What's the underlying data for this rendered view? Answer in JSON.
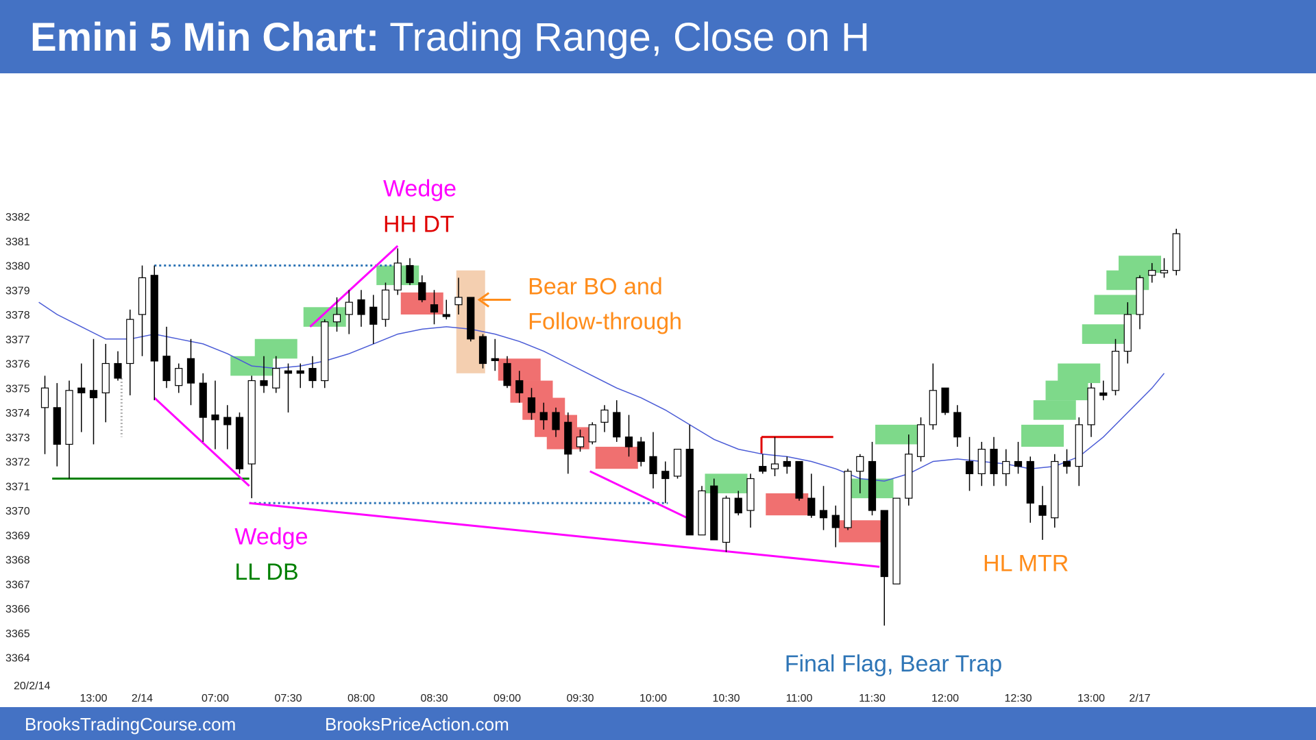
{
  "header": {
    "title_bold": "Emini 5 Min Chart:",
    "title_rest": " Trading Range, Close on H"
  },
  "footer": {
    "left_link": "BrooksTradingCourse.com",
    "right_link": "BrooksPriceAction.com"
  },
  "colors": {
    "banner": "#4472c4",
    "ema": "#4a5bd6",
    "bull_bar_bg": "#7ed98a",
    "bear_bar_bg": "#f07070",
    "wedge_line": "#ff00ff",
    "double_bottom_line": "#008000",
    "resistance_line": "#e00000",
    "dotted_range": "#2e75b6",
    "arrow": "#ff8c1a",
    "highlight": "#f4cfb0"
  },
  "chart_data": {
    "type": "candlestick",
    "date_label": "20/2/14",
    "y_ticks": [
      3382,
      3381,
      3380,
      3379,
      3378,
      3377,
      3376,
      3375,
      3374,
      3373,
      3372,
      3371,
      3370,
      3369,
      3368,
      3367,
      3366,
      3365,
      3364
    ],
    "ylim": [
      3364,
      3382
    ],
    "x_tick_labels": [
      {
        "label": "13:00",
        "bar": 4
      },
      {
        "label": "2/14",
        "bar": 8
      },
      {
        "label": "07:00",
        "bar": 14
      },
      {
        "label": "07:30",
        "bar": 20
      },
      {
        "label": "08:00",
        "bar": 26
      },
      {
        "label": "08:30",
        "bar": 32
      },
      {
        "label": "09:00",
        "bar": 38
      },
      {
        "label": "09:30",
        "bar": 44
      },
      {
        "label": "10:00",
        "bar": 50
      },
      {
        "label": "10:30",
        "bar": 56
      },
      {
        "label": "11:00",
        "bar": 62
      },
      {
        "label": "11:30",
        "bar": 68
      },
      {
        "label": "12:00",
        "bar": 74
      },
      {
        "label": "12:30",
        "bar": 80
      },
      {
        "label": "13:00",
        "bar": 86
      },
      {
        "label": "2/17",
        "bar": 90
      }
    ],
    "bars": [
      {
        "o": 3374.2,
        "h": 3375.5,
        "l": 3372.3,
        "c": 3375.0
      },
      {
        "o": 3374.2,
        "h": 3375.2,
        "l": 3371.8,
        "c": 3372.7
      },
      {
        "o": 3372.7,
        "h": 3375.3,
        "l": 3371.3,
        "c": 3374.9
      },
      {
        "o": 3375.0,
        "h": 3376.0,
        "l": 3373.2,
        "c": 3374.8
      },
      {
        "o": 3374.9,
        "h": 3377.0,
        "l": 3372.7,
        "c": 3374.6
      },
      {
        "o": 3374.8,
        "h": 3376.8,
        "l": 3373.6,
        "c": 3376.0
      },
      {
        "o": 3376.0,
        "h": 3376.5,
        "l": 3375.3,
        "c": 3375.4
      },
      {
        "o": 3376.0,
        "h": 3378.2,
        "l": 3374.7,
        "c": 3377.8
      },
      {
        "o": 3378.0,
        "h": 3380.0,
        "l": 3376.3,
        "c": 3379.5
      },
      {
        "o": 3379.6,
        "h": 3380.0,
        "l": 3374.5,
        "c": 3376.1
      },
      {
        "o": 3376.3,
        "h": 3377.5,
        "l": 3375.0,
        "c": 3375.3
      },
      {
        "o": 3375.1,
        "h": 3376.0,
        "l": 3374.8,
        "c": 3375.8
      },
      {
        "o": 3376.2,
        "h": 3377.0,
        "l": 3374.3,
        "c": 3375.2
      },
      {
        "o": 3375.2,
        "h": 3375.6,
        "l": 3372.8,
        "c": 3373.8
      },
      {
        "o": 3373.9,
        "h": 3375.3,
        "l": 3372.5,
        "c": 3373.7
      },
      {
        "o": 3373.8,
        "h": 3374.3,
        "l": 3372.5,
        "c": 3373.5
      },
      {
        "o": 3373.8,
        "h": 3374.0,
        "l": 3371.5,
        "c": 3371.7
      },
      {
        "o": 3371.9,
        "h": 3375.5,
        "l": 3370.5,
        "c": 3375.3
      },
      {
        "o": 3375.3,
        "h": 3376.3,
        "l": 3374.8,
        "c": 3375.1
      },
      {
        "o": 3375.0,
        "h": 3376.3,
        "l": 3374.8,
        "c": 3375.8
      },
      {
        "o": 3375.7,
        "h": 3376.0,
        "l": 3374.0,
        "c": 3375.6
      },
      {
        "o": 3375.7,
        "h": 3376.0,
        "l": 3375.0,
        "c": 3375.6
      },
      {
        "o": 3375.8,
        "h": 3376.3,
        "l": 3375.0,
        "c": 3375.3
      },
      {
        "o": 3375.3,
        "h": 3377.8,
        "l": 3375.0,
        "c": 3377.7
      },
      {
        "o": 3377.7,
        "h": 3378.7,
        "l": 3377.3,
        "c": 3378.0
      },
      {
        "o": 3378.0,
        "h": 3379.0,
        "l": 3377.2,
        "c": 3378.5
      },
      {
        "o": 3378.6,
        "h": 3379.0,
        "l": 3377.5,
        "c": 3378.0
      },
      {
        "o": 3378.3,
        "h": 3378.8,
        "l": 3376.8,
        "c": 3377.6
      },
      {
        "o": 3377.8,
        "h": 3379.3,
        "l": 3377.5,
        "c": 3379.0
      },
      {
        "o": 3379.0,
        "h": 3380.7,
        "l": 3378.8,
        "c": 3380.1
      },
      {
        "o": 3380.0,
        "h": 3380.3,
        "l": 3379.2,
        "c": 3379.3
      },
      {
        "o": 3379.3,
        "h": 3379.6,
        "l": 3378.5,
        "c": 3378.6
      },
      {
        "o": 3378.4,
        "h": 3379.0,
        "l": 3377.6,
        "c": 3378.1
      },
      {
        "o": 3378.0,
        "h": 3378.6,
        "l": 3377.8,
        "c": 3378.0
      },
      {
        "o": 3378.4,
        "h": 3379.5,
        "l": 3378.0,
        "c": 3378.7
      },
      {
        "o": 3378.7,
        "h": 3378.7,
        "l": 3376.9,
        "c": 3377.0
      },
      {
        "o": 3377.1,
        "h": 3377.2,
        "l": 3375.8,
        "c": 3376.0
      },
      {
        "o": 3376.2,
        "h": 3377.0,
        "l": 3375.7,
        "c": 3376.2
      },
      {
        "o": 3376.0,
        "h": 3376.3,
        "l": 3375.0,
        "c": 3375.1
      },
      {
        "o": 3375.3,
        "h": 3375.7,
        "l": 3374.4,
        "c": 3374.8
      },
      {
        "o": 3374.6,
        "h": 3375.0,
        "l": 3373.7,
        "c": 3374.0
      },
      {
        "o": 3374.0,
        "h": 3374.4,
        "l": 3373.3,
        "c": 3373.7
      },
      {
        "o": 3374.0,
        "h": 3374.2,
        "l": 3373.0,
        "c": 3373.3
      },
      {
        "o": 3373.6,
        "h": 3374.0,
        "l": 3371.5,
        "c": 3372.3
      },
      {
        "o": 3372.6,
        "h": 3373.3,
        "l": 3372.4,
        "c": 3373.0
      },
      {
        "o": 3372.8,
        "h": 3373.6,
        "l": 3372.7,
        "c": 3373.5
      },
      {
        "o": 3373.6,
        "h": 3374.3,
        "l": 3373.2,
        "c": 3374.1
      },
      {
        "o": 3374.0,
        "h": 3374.5,
        "l": 3372.8,
        "c": 3373.0
      },
      {
        "o": 3373.0,
        "h": 3373.9,
        "l": 3372.2,
        "c": 3372.6
      },
      {
        "o": 3372.8,
        "h": 3373.0,
        "l": 3371.8,
        "c": 3372.0
      },
      {
        "o": 3372.2,
        "h": 3373.2,
        "l": 3370.9,
        "c": 3371.5
      },
      {
        "o": 3371.6,
        "h": 3372.0,
        "l": 3370.3,
        "c": 3371.3
      },
      {
        "o": 3371.4,
        "h": 3372.5,
        "l": 3371.3,
        "c": 3372.5
      },
      {
        "o": 3372.5,
        "h": 3373.5,
        "l": 3369.0,
        "c": 3369.0
      },
      {
        "o": 3369.0,
        "h": 3371.0,
        "l": 3369.0,
        "c": 3370.8
      },
      {
        "o": 3371.0,
        "h": 3371.3,
        "l": 3368.8,
        "c": 3368.8
      },
      {
        "o": 3368.7,
        "h": 3370.6,
        "l": 3368.3,
        "c": 3370.5
      },
      {
        "o": 3370.5,
        "h": 3370.8,
        "l": 3369.8,
        "c": 3369.9
      },
      {
        "o": 3370.0,
        "h": 3371.5,
        "l": 3369.3,
        "c": 3371.3
      },
      {
        "o": 3371.8,
        "h": 3372.3,
        "l": 3371.5,
        "c": 3371.6
      },
      {
        "o": 3371.7,
        "h": 3373.0,
        "l": 3371.4,
        "c": 3371.9
      },
      {
        "o": 3372.0,
        "h": 3372.2,
        "l": 3371.5,
        "c": 3371.8
      },
      {
        "o": 3372.0,
        "h": 3372.0,
        "l": 3370.4,
        "c": 3370.5
      },
      {
        "o": 3370.5,
        "h": 3371.5,
        "l": 3369.7,
        "c": 3369.8
      },
      {
        "o": 3370.0,
        "h": 3371.0,
        "l": 3369.2,
        "c": 3369.7
      },
      {
        "o": 3369.8,
        "h": 3370.2,
        "l": 3368.5,
        "c": 3369.3
      },
      {
        "o": 3369.3,
        "h": 3371.7,
        "l": 3369.2,
        "c": 3371.6
      },
      {
        "o": 3371.6,
        "h": 3372.3,
        "l": 3370.7,
        "c": 3372.2
      },
      {
        "o": 3372.0,
        "h": 3372.8,
        "l": 3369.8,
        "c": 3370.0
      },
      {
        "o": 3370.0,
        "h": 3370.0,
        "l": 3365.3,
        "c": 3367.3
      },
      {
        "o": 3367.0,
        "h": 3370.5,
        "l": 3367.0,
        "c": 3370.5
      },
      {
        "o": 3370.5,
        "h": 3373.1,
        "l": 3370.2,
        "c": 3372.3
      },
      {
        "o": 3372.2,
        "h": 3373.8,
        "l": 3372.0,
        "c": 3373.5
      },
      {
        "o": 3373.5,
        "h": 3376.0,
        "l": 3373.3,
        "c": 3374.9
      },
      {
        "o": 3375.0,
        "h": 3375.0,
        "l": 3373.9,
        "c": 3374.0
      },
      {
        "o": 3374.0,
        "h": 3374.3,
        "l": 3372.6,
        "c": 3373.0
      },
      {
        "o": 3372.0,
        "h": 3373.0,
        "l": 3370.8,
        "c": 3371.5
      },
      {
        "o": 3371.5,
        "h": 3372.8,
        "l": 3371.0,
        "c": 3372.5
      },
      {
        "o": 3372.5,
        "h": 3373.0,
        "l": 3371.0,
        "c": 3371.5
      },
      {
        "o": 3371.5,
        "h": 3372.5,
        "l": 3371.0,
        "c": 3372.0
      },
      {
        "o": 3372.0,
        "h": 3372.8,
        "l": 3371.5,
        "c": 3371.8
      },
      {
        "o": 3372.0,
        "h": 3372.2,
        "l": 3369.5,
        "c": 3370.3
      },
      {
        "o": 3370.2,
        "h": 3371.0,
        "l": 3368.8,
        "c": 3369.8
      },
      {
        "o": 3369.7,
        "h": 3372.3,
        "l": 3369.3,
        "c": 3372.0
      },
      {
        "o": 3372.0,
        "h": 3372.5,
        "l": 3371.5,
        "c": 3371.8
      },
      {
        "o": 3371.8,
        "h": 3373.8,
        "l": 3371.0,
        "c": 3373.5
      },
      {
        "o": 3373.5,
        "h": 3375.2,
        "l": 3373.0,
        "c": 3375.0
      },
      {
        "o": 3374.8,
        "h": 3375.3,
        "l": 3374.5,
        "c": 3374.7
      },
      {
        "o": 3374.9,
        "h": 3377.0,
        "l": 3374.7,
        "c": 3376.5
      },
      {
        "o": 3376.5,
        "h": 3378.5,
        "l": 3376.0,
        "c": 3378.0
      },
      {
        "o": 3378.0,
        "h": 3379.6,
        "l": 3377.4,
        "c": 3379.5
      },
      {
        "o": 3379.6,
        "h": 3380.1,
        "l": 3379.3,
        "c": 3379.8
      },
      {
        "o": 3379.7,
        "h": 3380.3,
        "l": 3379.5,
        "c": 3379.8
      },
      {
        "o": 3379.8,
        "h": 3381.5,
        "l": 3379.6,
        "c": 3381.3
      }
    ],
    "ema": [
      {
        "bar": -0.5,
        "y": 3378.5
      },
      {
        "bar": 1,
        "y": 3378.0
      },
      {
        "bar": 3,
        "y": 3377.5
      },
      {
        "bar": 5,
        "y": 3377.0
      },
      {
        "bar": 7,
        "y": 3377.0
      },
      {
        "bar": 9,
        "y": 3377.2
      },
      {
        "bar": 11,
        "y": 3377.0
      },
      {
        "bar": 13,
        "y": 3376.8
      },
      {
        "bar": 15,
        "y": 3376.4
      },
      {
        "bar": 17,
        "y": 3375.9
      },
      {
        "bar": 19,
        "y": 3375.8
      },
      {
        "bar": 21,
        "y": 3375.9
      },
      {
        "bar": 23,
        "y": 3376.1
      },
      {
        "bar": 25,
        "y": 3376.4
      },
      {
        "bar": 27,
        "y": 3376.8
      },
      {
        "bar": 29,
        "y": 3377.2
      },
      {
        "bar": 31,
        "y": 3377.4
      },
      {
        "bar": 33,
        "y": 3377.5
      },
      {
        "bar": 35,
        "y": 3377.4
      },
      {
        "bar": 37,
        "y": 3377.2
      },
      {
        "bar": 39,
        "y": 3376.9
      },
      {
        "bar": 41,
        "y": 3376.5
      },
      {
        "bar": 43,
        "y": 3376.0
      },
      {
        "bar": 45,
        "y": 3375.5
      },
      {
        "bar": 47,
        "y": 3375.0
      },
      {
        "bar": 49,
        "y": 3374.6
      },
      {
        "bar": 51,
        "y": 3374.1
      },
      {
        "bar": 53,
        "y": 3373.5
      },
      {
        "bar": 55,
        "y": 3372.9
      },
      {
        "bar": 57,
        "y": 3372.5
      },
      {
        "bar": 59,
        "y": 3372.3
      },
      {
        "bar": 61,
        "y": 3372.2
      },
      {
        "bar": 63,
        "y": 3372.0
      },
      {
        "bar": 65,
        "y": 3371.7
      },
      {
        "bar": 67,
        "y": 3371.3
      },
      {
        "bar": 69,
        "y": 3371.2
      },
      {
        "bar": 71,
        "y": 3371.5
      },
      {
        "bar": 73,
        "y": 3372.0
      },
      {
        "bar": 75,
        "y": 3372.1
      },
      {
        "bar": 77,
        "y": 3372.0
      },
      {
        "bar": 79,
        "y": 3371.9
      },
      {
        "bar": 81,
        "y": 3371.7
      },
      {
        "bar": 83,
        "y": 3371.8
      },
      {
        "bar": 85,
        "y": 3372.2
      },
      {
        "bar": 87,
        "y": 3373.0
      },
      {
        "bar": 89,
        "y": 3374.0
      },
      {
        "bar": 91,
        "y": 3375.0
      },
      {
        "bar": 92,
        "y": 3375.6
      }
    ],
    "bull_bar_highlights": [
      {
        "bar": 17,
        "lo": 3375.5,
        "hi": 3376.3
      },
      {
        "bar": 19,
        "lo": 3376.2,
        "hi": 3377.0
      },
      {
        "bar": 23,
        "lo": 3377.5,
        "hi": 3378.3
      },
      {
        "bar": 29,
        "lo": 3379.2,
        "hi": 3380.0
      },
      {
        "bar": 56,
        "lo": 3370.7,
        "hi": 3371.5
      },
      {
        "bar": 68,
        "lo": 3370.5,
        "hi": 3371.3
      },
      {
        "bar": 70,
        "lo": 3372.7,
        "hi": 3373.5
      },
      {
        "bar": 82,
        "lo": 3372.6,
        "hi": 3373.5
      },
      {
        "bar": 83,
        "lo": 3373.7,
        "hi": 3374.5
      },
      {
        "bar": 84,
        "lo": 3374.5,
        "hi": 3375.3
      },
      {
        "bar": 85,
        "lo": 3375.2,
        "hi": 3376.0
      },
      {
        "bar": 87,
        "lo": 3376.8,
        "hi": 3377.6
      },
      {
        "bar": 88,
        "lo": 3378.0,
        "hi": 3378.8
      },
      {
        "bar": 89,
        "lo": 3379.0,
        "hi": 3379.8
      },
      {
        "bar": 90,
        "lo": 3379.7,
        "hi": 3380.4
      }
    ],
    "bear_bar_highlights": [
      {
        "bar": 31,
        "lo": 3378.0,
        "hi": 3378.9
      },
      {
        "bar": 39,
        "lo": 3375.3,
        "hi": 3376.2
      },
      {
        "bar": 40,
        "lo": 3374.4,
        "hi": 3375.3
      },
      {
        "bar": 41,
        "lo": 3373.7,
        "hi": 3374.6
      },
      {
        "bar": 42,
        "lo": 3373.0,
        "hi": 3373.9
      },
      {
        "bar": 43,
        "lo": 3372.5,
        "hi": 3373.4
      },
      {
        "bar": 47,
        "lo": 3371.7,
        "hi": 3372.6
      },
      {
        "bar": 61,
        "lo": 3369.8,
        "hi": 3370.7
      },
      {
        "bar": 67,
        "lo": 3368.7,
        "hi": 3369.6
      }
    ],
    "highlight_box": {
      "bar": 35,
      "lo": 3375.6,
      "hi": 3379.8
    },
    "lines": {
      "double_bottom": {
        "from_bar": 0.6,
        "to_bar": 16.8,
        "y": 3371.3
      },
      "top_dotted": {
        "from_bar": 9,
        "to_bar": 29,
        "y": 3380.0
      },
      "bottom_dotted": {
        "from_bar": 16.8,
        "to_bar": 51.2,
        "y": 3370.3
      },
      "resistance": {
        "from_bar": 58.9,
        "to_bar": 64.8,
        "y": 3373.0
      },
      "wedge_top": {
        "from_bar": 21.8,
        "from_y": 3377.5,
        "to_bar": 29.0,
        "to_y": 3380.8
      },
      "wedge_bottom": {
        "from_bar": 9.0,
        "from_y": 3374.6,
        "to_bar": 16.8,
        "to_y": 3371.0
      },
      "lower_wedge": {
        "from_bar": 16.8,
        "from_y": 3370.3,
        "to_bar": 68.6,
        "to_y": 3367.7
      },
      "bear_channel": {
        "from_bar": 44.8,
        "from_y": 3371.6,
        "to_bar": 53.2,
        "to_y": 3369.6
      },
      "arrow": {
        "from_bar": 38.3,
        "to_bar": 35.7,
        "y": 3378.6
      }
    },
    "annotations": [
      {
        "lines": [
          "Wedge"
        ],
        "colors": [
          "wedge_line"
        ],
        "bar": 27.8,
        "y_top": 3383.8
      },
      {
        "lines": [
          "HH DT"
        ],
        "colors": [
          "resistance_line"
        ],
        "bar": 27.8,
        "y_top": 3382.35
      },
      {
        "lines": [
          "Bear BO and",
          "Follow-through"
        ],
        "colors": [
          "arrow",
          "arrow"
        ],
        "bar": 39.7,
        "y_top": 3379.8
      },
      {
        "lines": [
          "Wedge"
        ],
        "colors": [
          "wedge_line"
        ],
        "bar": 15.6,
        "y_top": 3369.6
      },
      {
        "lines": [
          "LL DB"
        ],
        "colors": [
          "double_bottom_line"
        ],
        "bar": 15.6,
        "y_top": 3368.15
      },
      {
        "lines": [
          "HL MTR"
        ],
        "colors": [
          "arrow"
        ],
        "bar": 77.1,
        "y_top": 3368.5
      },
      {
        "lines": [
          "Final Flag, Bear Trap"
        ],
        "colors": [
          "dotted_range"
        ],
        "bar": 60.8,
        "y_top": 3364.4
      }
    ]
  }
}
